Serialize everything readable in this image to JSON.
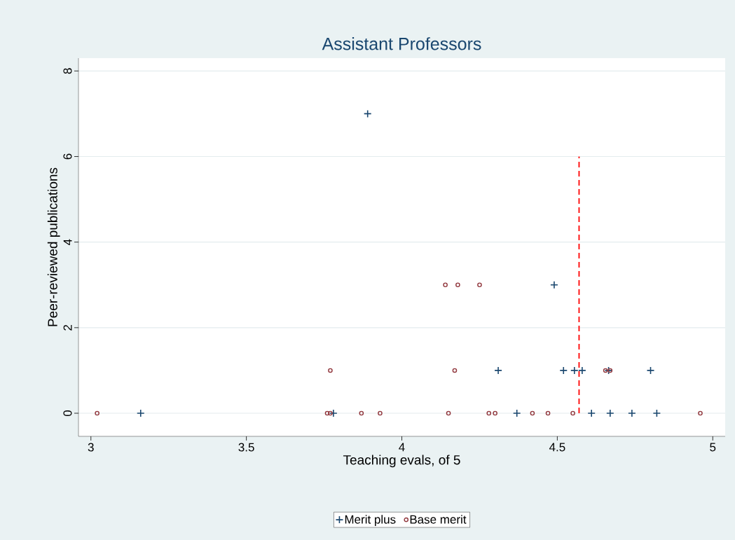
{
  "chart_data": {
    "type": "scatter",
    "title": "Assistant Professors",
    "xlabel": "Teaching evals, of 5",
    "ylabel": "Peer-reviewed publications",
    "xlim": [
      2.96,
      5.04
    ],
    "ylim": [
      -0.54,
      8.3
    ],
    "xticks": [
      3,
      3.5,
      4,
      4.5,
      5
    ],
    "yticks": [
      0,
      2,
      4,
      6,
      8
    ],
    "grid": "y",
    "legend": "bottom",
    "series": [
      {
        "name": "Merit plus",
        "color": "#1a476f",
        "marker": "cross",
        "x": [
          3.89,
          4.49,
          4.31,
          4.52,
          4.555,
          4.58,
          4.665,
          4.8,
          3.16,
          3.78,
          4.37,
          4.61,
          4.67,
          4.74,
          4.82
        ],
        "values": [
          7,
          3,
          1,
          1,
          1,
          1,
          1,
          1,
          0,
          0,
          0,
          0,
          0,
          0,
          0
        ]
      },
      {
        "name": "Base merit",
        "color": "#90353b",
        "marker": "circle",
        "x": [
          4.14,
          4.18,
          4.25,
          3.77,
          4.17,
          4.655,
          4.67,
          3.02,
          3.76,
          3.77,
          3.87,
          3.93,
          4.15,
          4.28,
          4.3,
          4.42,
          4.47,
          4.55,
          4.96
        ],
        "values": [
          3,
          3,
          3,
          1,
          1,
          1,
          1,
          0,
          0,
          0,
          0,
          0,
          0,
          0,
          0,
          0,
          0,
          0,
          0
        ]
      },
      {
        "type": "line",
        "color": "#ff0000",
        "line_style": "dashed",
        "marker": "none",
        "x": [
          4.57,
          4.57
        ],
        "values": [
          0,
          6
        ]
      }
    ]
  }
}
